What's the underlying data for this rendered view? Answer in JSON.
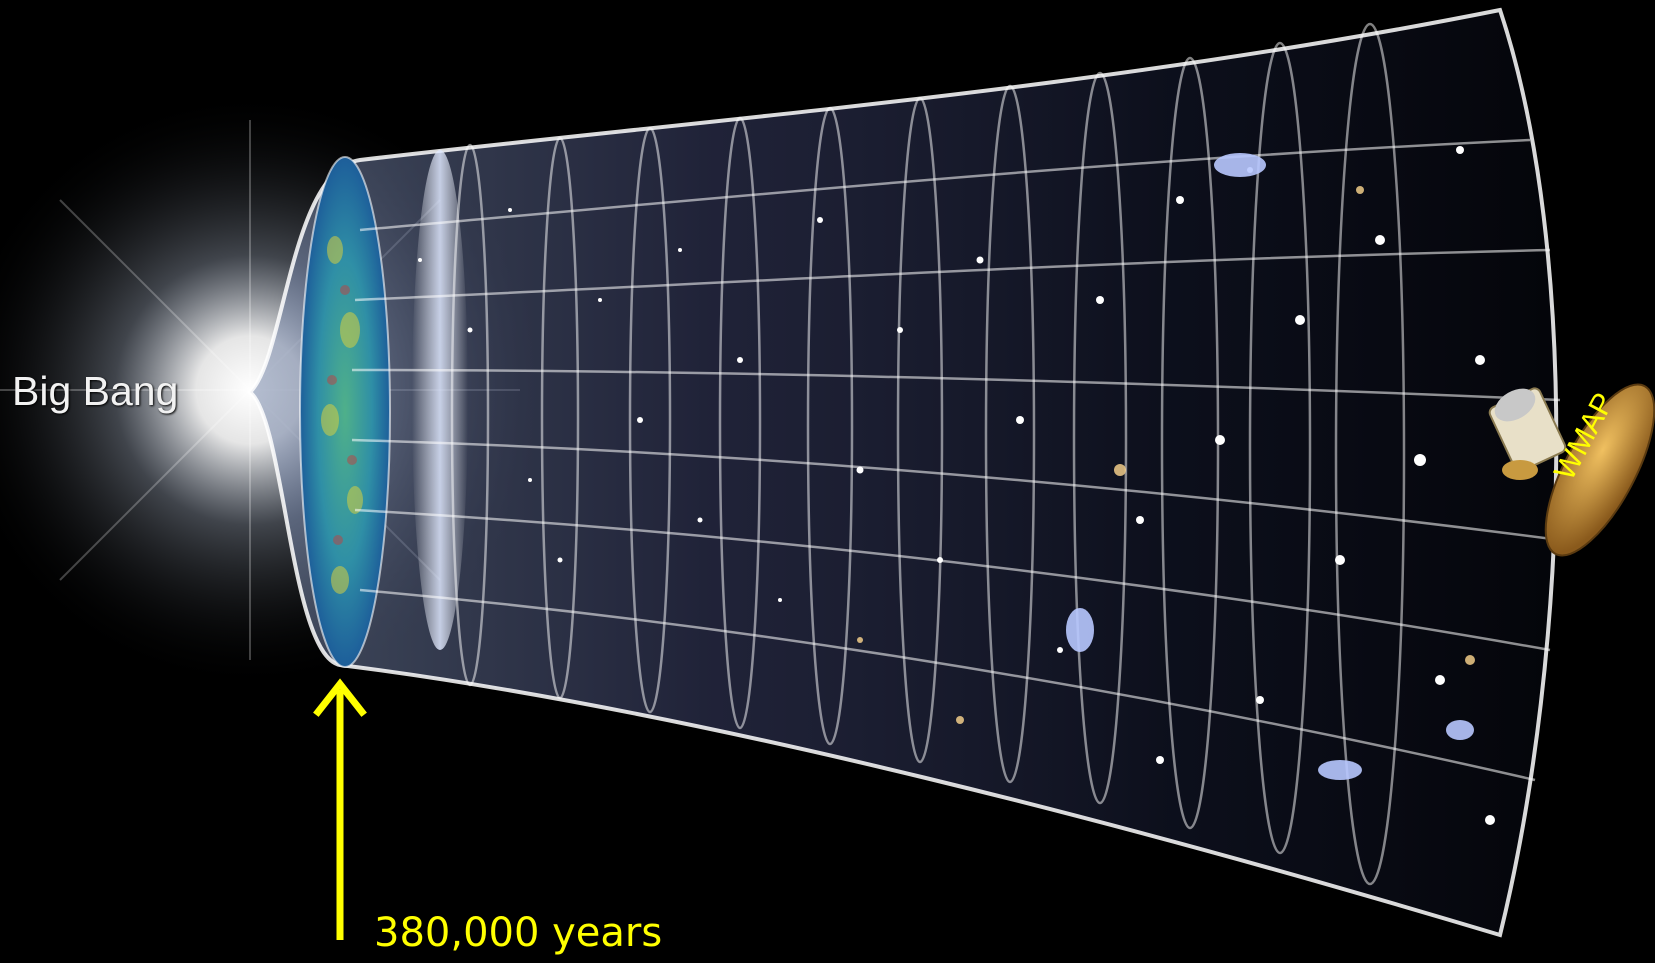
{
  "labels": {
    "big_bang": "Big Bang",
    "time_marker": "380,000 years",
    "satellite": "WMAP"
  },
  "colors": {
    "background": "#000000",
    "label_text": "#f2f2f2",
    "annotation": "#ffff00",
    "grid": "#ffffff",
    "cmb_surface": "#3aa07a"
  },
  "icons": {
    "origin": "big-bang-flash-icon",
    "arrow": "up-arrow-icon",
    "satellite": "wmap-satellite-icon"
  }
}
